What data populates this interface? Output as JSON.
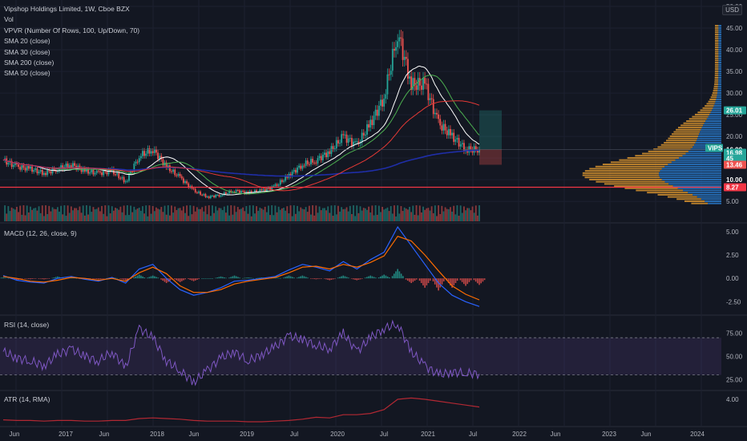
{
  "legend": {
    "title": "Vipshop Holdings Limited, 1W, Cboe BZX",
    "items": [
      "Vol",
      "VPVR (Number Of Rows, 100, Up/Down, 70)",
      "SMA 20 (close)",
      "SMA 30 (close)",
      "SMA 200 (close)",
      "SMA 50 (close)"
    ]
  },
  "currency": "USD",
  "price_axis": {
    "ticks": [
      "50.00",
      "45.00",
      "40.00",
      "35.00",
      "30.00",
      "25.00",
      "20.00",
      "15.00",
      "10.00",
      "5.00"
    ],
    "badges": [
      {
        "label": "26.01",
        "color": "#26a69a"
      },
      {
        "label": "16.99",
        "color": "#131722"
      },
      {
        "label": "VIPS",
        "color": "#26a69a"
      },
      {
        "label": "16.98",
        "color": "#26a69a"
      },
      {
        "label": "45",
        "color": "#26a69a"
      },
      {
        "label": "13.46",
        "color": "#ef5350"
      },
      {
        "label": "10.00",
        "color": "#131722"
      },
      {
        "label": "8.27",
        "color": "#f23645"
      }
    ]
  },
  "macd_pane": {
    "label": "MACD (12, 26, close, 9)",
    "ticks": [
      "5.00",
      "2.50",
      "0.00",
      "-2.50"
    ]
  },
  "rsi_pane": {
    "label": "RSI (14, close)",
    "ticks": [
      "75.00",
      "50.00",
      "25.00"
    ]
  },
  "atr_pane": {
    "label": "ATR (14, RMA)",
    "ticks": [
      "4.00"
    ]
  },
  "x_axis": [
    "Jun",
    "2017",
    "Jun",
    "2018",
    "Jun",
    "2019",
    "Jul",
    "2020",
    "Jul",
    "2021",
    "Jul",
    "2022",
    "Jun",
    "2023",
    "Jun",
    "2024"
  ],
  "colors": {
    "up": "#26a69a",
    "down": "#ef5350",
    "sma20": "#ffffff",
    "sma30": "#4caf50",
    "sma200": "#1f2ea8",
    "sma50": "#e53935",
    "hline": "#f23645",
    "macd": "#2962ff",
    "signal": "#ff6d00",
    "rsi": "#7e57c2",
    "atr": "#b22833"
  },
  "chart_data": [
    {
      "type": "candlestick",
      "title": "Vipshop Holdings Limited, 1W, Cboe BZX",
      "ylim": [
        3,
        50
      ],
      "x": [
        "2016-05",
        "2016-07",
        "2016-09",
        "2016-11",
        "2017-01",
        "2017-03",
        "2017-05",
        "2017-07",
        "2017-09",
        "2017-11",
        "2018-01",
        "2018-03",
        "2018-05",
        "2018-07",
        "2018-09",
        "2018-11",
        "2019-01",
        "2019-03",
        "2019-05",
        "2019-07",
        "2019-09",
        "2019-11",
        "2020-01",
        "2020-03",
        "2020-05",
        "2020-07",
        "2020-09",
        "2020-11",
        "2021-01",
        "2021-02",
        "2021-03",
        "2021-04",
        "2021-05",
        "2021-06",
        "2021-07",
        "2021-08"
      ],
      "close": [
        14.5,
        13.0,
        12.5,
        11.5,
        12.5,
        13.5,
        12.0,
        11.5,
        12.0,
        9.5,
        15.5,
        17.0,
        13.0,
        10.5,
        7.5,
        6.0,
        6.5,
        7.5,
        7.0,
        7.5,
        8.5,
        11.0,
        13.5,
        14.5,
        16.5,
        20.0,
        18.0,
        23.0,
        29.0,
        44.0,
        32.0,
        32.0,
        23.0,
        20.0,
        17.0,
        16.98
      ],
      "horizontal_line": 8.27,
      "horizontal_reference": 16.99
    },
    {
      "type": "bar",
      "title": "MACD (12, 26, close, 9)",
      "ylim": [
        -3.5,
        5.5
      ],
      "macd": [
        0.3,
        -0.2,
        -0.4,
        -0.5,
        0.0,
        0.2,
        -0.1,
        -0.3,
        0.1,
        -0.5,
        1.0,
        1.5,
        0.0,
        -1.2,
        -1.8,
        -1.5,
        -1.0,
        -0.3,
        -0.2,
        0.0,
        0.2,
        0.9,
        1.5,
        1.2,
        0.8,
        1.8,
        1.0,
        2.0,
        2.8,
        5.5,
        3.5,
        1.5,
        -0.5,
        -1.8,
        -2.5,
        -3.0
      ],
      "signal": [
        0.2,
        0.0,
        -0.3,
        -0.4,
        -0.2,
        0.1,
        0.0,
        -0.2,
        0.0,
        -0.3,
        0.6,
        1.2,
        0.5,
        -0.8,
        -1.5,
        -1.5,
        -1.2,
        -0.6,
        -0.3,
        -0.1,
        0.1,
        0.6,
        1.2,
        1.3,
        1.0,
        1.5,
        1.2,
        1.7,
        2.4,
        4.5,
        4.0,
        2.5,
        0.8,
        -0.8,
        -1.7,
        -2.3
      ]
    },
    {
      "type": "line",
      "title": "RSI (14, close)",
      "ylim": [
        15,
        90
      ],
      "bands": [
        30,
        70
      ],
      "values": [
        55,
        48,
        45,
        40,
        52,
        58,
        50,
        45,
        55,
        38,
        80,
        70,
        45,
        35,
        22,
        35,
        48,
        55,
        45,
        52,
        60,
        72,
        68,
        62,
        58,
        75,
        55,
        70,
        80,
        85,
        55,
        40,
        30,
        33,
        32,
        31
      ]
    },
    {
      "type": "line",
      "title": "ATR (14, RMA)",
      "ylim": [
        0,
        5
      ],
      "values": [
        0.8,
        0.7,
        0.7,
        0.6,
        0.7,
        0.7,
        0.6,
        0.6,
        0.7,
        0.7,
        1.0,
        1.1,
        1.0,
        0.9,
        0.7,
        0.6,
        0.6,
        0.6,
        0.5,
        0.5,
        0.6,
        0.7,
        0.9,
        1.2,
        1.1,
        1.6,
        1.6,
        1.8,
        2.4,
        4.0,
        4.2,
        4.0,
        3.7,
        3.4,
        3.1,
        2.8
      ]
    }
  ]
}
